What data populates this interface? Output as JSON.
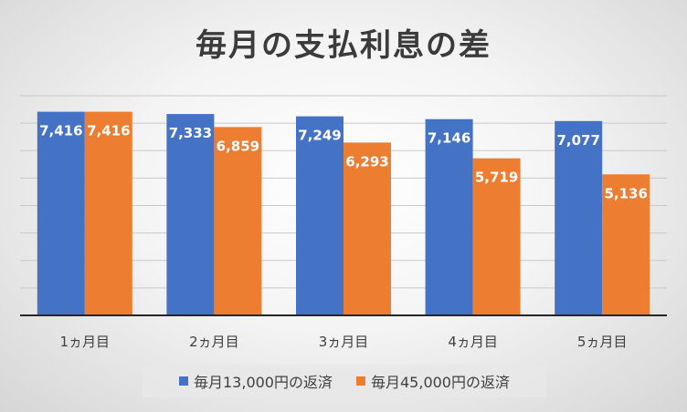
{
  "chart_data": {
    "type": "bar",
    "title": "毎月の支払利息の差",
    "categories": [
      "1ヵ月目",
      "2ヵ月目",
      "3ヵ月目",
      "4ヵ月目",
      "5ヵ月目"
    ],
    "series": [
      {
        "name": "毎月13,000円の返済",
        "values": [
          7416,
          7333,
          7249,
          7146,
          7077
        ],
        "labels": [
          "7,416",
          "7,333",
          "7,249",
          "7,146",
          "7,077"
        ],
        "color": "#4472c4"
      },
      {
        "name": "毎月45,000円の返済",
        "values": [
          7416,
          6859,
          6293,
          5719,
          5136
        ],
        "labels": [
          "7,416",
          "6,859",
          "6,293",
          "5,719",
          "5,136"
        ],
        "color": "#ed7d31"
      }
    ],
    "ylim": [
      0,
      8000
    ],
    "grid": true,
    "legend_position": "bottom"
  }
}
